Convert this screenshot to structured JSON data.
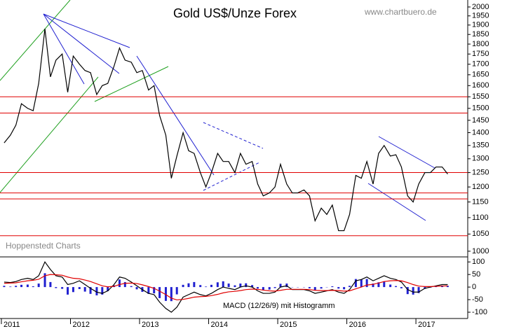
{
  "chart_data": [
    {
      "type": "line",
      "title": "Gold US$/Unze Forex",
      "subtitle": "www.chartbuero.de",
      "annotation": "Hoppenstedt Charts",
      "log_scale": true,
      "color": "#000000",
      "level_color": "#e00000",
      "levels": [
        1550,
        1480,
        1250,
        1180,
        1160,
        1045
      ],
      "x": [
        2011.04,
        2011.13,
        2011.21,
        2011.29,
        2011.38,
        2011.46,
        2011.54,
        2011.63,
        2011.71,
        2011.79,
        2011.88,
        2011.96,
        2012.04,
        2012.13,
        2012.21,
        2012.29,
        2012.38,
        2012.46,
        2012.54,
        2012.63,
        2012.71,
        2012.79,
        2012.88,
        2012.96,
        2013.04,
        2013.13,
        2013.21,
        2013.29,
        2013.38,
        2013.46,
        2013.54,
        2013.63,
        2013.71,
        2013.79,
        2013.88,
        2013.96,
        2014.04,
        2014.13,
        2014.21,
        2014.29,
        2014.38,
        2014.46,
        2014.54,
        2014.63,
        2014.71,
        2014.79,
        2014.88,
        2014.96,
        2015.04,
        2015.13,
        2015.21,
        2015.29,
        2015.38,
        2015.46,
        2015.54,
        2015.63,
        2015.71,
        2015.79,
        2015.88,
        2015.96,
        2016.04,
        2016.13,
        2016.21,
        2016.29,
        2016.38,
        2016.46,
        2016.54,
        2016.63,
        2016.71,
        2016.79,
        2016.88,
        2016.96,
        2017.04,
        2017.13,
        2017.21,
        2017.29,
        2017.38,
        2017.46
      ],
      "values": [
        1360,
        1390,
        1430,
        1520,
        1500,
        1490,
        1610,
        1880,
        1640,
        1720,
        1750,
        1570,
        1740,
        1700,
        1670,
        1660,
        1560,
        1600,
        1610,
        1690,
        1780,
        1720,
        1710,
        1660,
        1670,
        1580,
        1600,
        1470,
        1390,
        1230,
        1310,
        1400,
        1330,
        1320,
        1250,
        1200,
        1250,
        1320,
        1290,
        1290,
        1250,
        1320,
        1280,
        1290,
        1210,
        1170,
        1180,
        1200,
        1280,
        1210,
        1180,
        1180,
        1190,
        1170,
        1090,
        1130,
        1110,
        1140,
        1060,
        1060,
        1110,
        1240,
        1230,
        1290,
        1210,
        1320,
        1350,
        1310,
        1315,
        1270,
        1170,
        1150,
        1210,
        1250,
        1250,
        1270,
        1270,
        1245
      ],
      "xlim": [
        2010.98,
        2017.75
      ],
      "ylim": [
        984,
        2040
      ],
      "yticks": [
        2000,
        1950,
        1900,
        1850,
        1800,
        1750,
        1700,
        1650,
        1600,
        1550,
        1500,
        1450,
        1400,
        1350,
        1300,
        1250,
        1200,
        1150,
        1100,
        1050,
        1000
      ]
    },
    {
      "type": "macd",
      "annotation": "MACD (12/26/9) mit Histogramm",
      "x": [
        2011.04,
        2011.13,
        2011.21,
        2011.29,
        2011.38,
        2011.46,
        2011.54,
        2011.63,
        2011.71,
        2011.79,
        2011.88,
        2011.96,
        2012.04,
        2012.13,
        2012.21,
        2012.29,
        2012.38,
        2012.46,
        2012.54,
        2012.63,
        2012.71,
        2012.79,
        2012.88,
        2012.96,
        2013.04,
        2013.13,
        2013.21,
        2013.29,
        2013.38,
        2013.46,
        2013.54,
        2013.63,
        2013.71,
        2013.79,
        2013.88,
        2013.96,
        2014.04,
        2014.13,
        2014.21,
        2014.29,
        2014.38,
        2014.46,
        2014.54,
        2014.63,
        2014.71,
        2014.79,
        2014.88,
        2014.96,
        2015.04,
        2015.13,
        2015.21,
        2015.29,
        2015.38,
        2015.46,
        2015.54,
        2015.63,
        2015.71,
        2015.79,
        2015.88,
        2015.96,
        2016.04,
        2016.13,
        2016.21,
        2016.29,
        2016.38,
        2016.46,
        2016.54,
        2016.63,
        2016.71,
        2016.79,
        2016.88,
        2016.96,
        2017.04,
        2017.13,
        2017.21,
        2017.29,
        2017.38,
        2017.46
      ],
      "series": [
        {
          "color": "#000000",
          "values": [
            20,
            18,
            22,
            30,
            35,
            30,
            45,
            100,
            70,
            45,
            40,
            10,
            15,
            25,
            10,
            -5,
            -20,
            -25,
            -15,
            10,
            40,
            35,
            20,
            5,
            -10,
            -25,
            -30,
            -60,
            -85,
            -100,
            -80,
            -40,
            -30,
            -20,
            -30,
            -35,
            -25,
            -10,
            0,
            -5,
            -10,
            0,
            5,
            0,
            -15,
            -25,
            -25,
            -20,
            0,
            5,
            -10,
            -10,
            -10,
            -15,
            -25,
            -20,
            -15,
            -10,
            -20,
            -25,
            -10,
            25,
            30,
            40,
            25,
            35,
            45,
            35,
            30,
            20,
            -10,
            -20,
            -20,
            -5,
            0,
            5,
            10,
            10
          ]
        },
        {
          "color": "#e00000",
          "values": [
            15,
            16,
            17,
            21,
            25,
            27,
            31,
            45,
            50,
            49,
            47,
            40,
            35,
            33,
            28,
            22,
            13,
            5,
            1,
            3,
            10,
            15,
            16,
            14,
            9,
            2,
            -5,
            -16,
            -30,
            -44,
            -51,
            -49,
            -45,
            -40,
            -38,
            -37,
            -34,
            -29,
            -23,
            -19,
            -17,
            -14,
            -10,
            -8,
            -9,
            -12,
            -15,
            -16,
            -13,
            -9,
            -9,
            -9,
            -9,
            -10,
            -13,
            -14,
            -14,
            -13,
            -14,
            -16,
            -15,
            -7,
            0,
            8,
            11,
            16,
            22,
            25,
            26,
            25,
            18,
            10,
            4,
            2,
            2,
            3,
            4,
            5
          ]
        }
      ],
      "histogram": {
        "color": "#2020d0",
        "values": [
          5,
          2,
          5,
          9,
          10,
          3,
          14,
          55,
          20,
          -4,
          -7,
          -30,
          -20,
          -8,
          -18,
          -27,
          -33,
          -30,
          -16,
          7,
          30,
          20,
          4,
          -9,
          -19,
          -27,
          -25,
          -44,
          -55,
          -56,
          -29,
          9,
          15,
          20,
          8,
          2,
          9,
          19,
          23,
          14,
          7,
          14,
          15,
          8,
          -6,
          -13,
          -10,
          -4,
          13,
          14,
          -1,
          -1,
          -1,
          -5,
          -12,
          -6,
          -1,
          3,
          -6,
          -9,
          5,
          32,
          30,
          32,
          14,
          19,
          23,
          10,
          4,
          -5,
          -28,
          -30,
          -24,
          -7,
          -2,
          2,
          6,
          5
        ]
      },
      "xlim": [
        2010.98,
        2017.75
      ],
      "ylim": [
        -125,
        120
      ],
      "yticks": [
        100,
        50,
        0,
        -50,
        -100
      ],
      "xticks": [
        2011,
        2012,
        2013,
        2014,
        2015,
        2016,
        2017
      ]
    }
  ]
}
